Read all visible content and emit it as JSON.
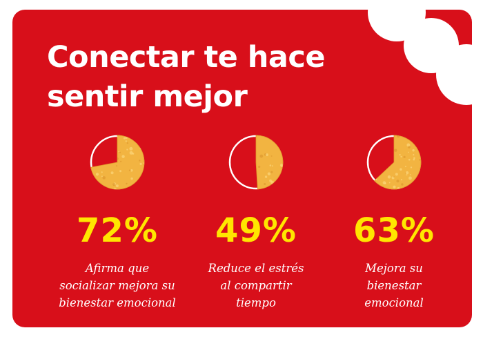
{
  "colors": {
    "background": "#ffffff",
    "card": "#d80f1a",
    "title": "#ffffff",
    "percent": "#ffe600",
    "text": "#ffffff",
    "chip_fill": "#f2b441",
    "chip_texture": "#ffe08a"
  },
  "title": {
    "line1": "Conectar te hace",
    "line2": "sentir mejor"
  },
  "stats": [
    {
      "percent_label": "72%",
      "description": "Afirma que\nsocializar mejora su\nbienestar emocional"
    },
    {
      "percent_label": "49%",
      "description": "Reduce el estrés\nal compartir\ntiempo"
    },
    {
      "percent_label": "63%",
      "description": "Mejora su\nbienestar\nemocional"
    }
  ],
  "chart_data": {
    "type": "pie",
    "items": [
      {
        "label": "Afirma que socializar mejora su bienestar emocional",
        "value": 72
      },
      {
        "label": "Reduce el estrés al compartir tiempo",
        "value": 49
      },
      {
        "label": "Mejora su bienestar emocional",
        "value": 63
      }
    ],
    "unit": "%",
    "max": 100
  }
}
